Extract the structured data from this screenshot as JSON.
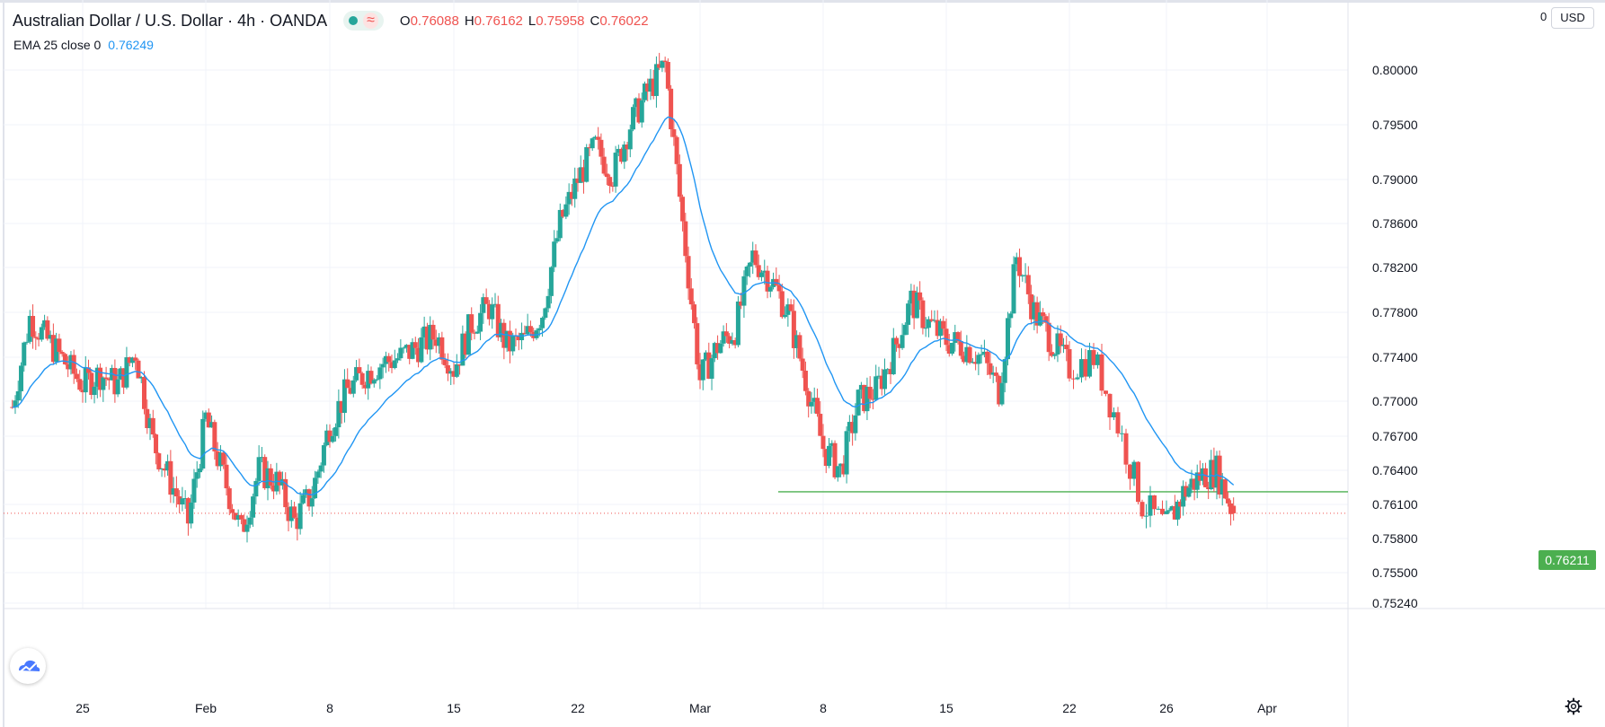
{
  "header": {
    "symbol": "Australian Dollar / U.S. Dollar",
    "interval": "4h",
    "exchange": "OANDA",
    "wave_glyph": "≈",
    "open_label": "O",
    "open": "0.76088",
    "high_label": "H",
    "high": "0.76162",
    "low_label": "L",
    "low": "0.75958",
    "close_label": "C",
    "close": "0.76022"
  },
  "indicator": {
    "label": "EMA 25 close 0",
    "value": "0.76249"
  },
  "currency_button": "USD",
  "scale_zero": "0",
  "support_badge": "0.76211",
  "colors": {
    "up": "#26a69a",
    "down": "#ef5350",
    "ema": "#2196f3",
    "support": "#4caf50",
    "last_price": "#ef5350"
  },
  "chart_data": {
    "type": "candlestick",
    "instrument": "AUD/USD",
    "timeframe": "4h",
    "y_ticks": [
      0.8,
      0.795,
      0.79,
      0.786,
      0.782,
      0.778,
      0.774,
      0.77,
      0.767,
      0.764,
      0.761,
      0.758,
      0.755,
      0.7524
    ],
    "y_tick_labels": [
      "0.80000",
      "0.79500",
      "0.79000",
      "0.78600",
      "0.78200",
      "0.77800",
      "0.77400",
      "0.77000",
      "0.76700",
      "0.76400",
      "0.76100",
      "0.75800",
      "0.75500",
      "0.75240"
    ],
    "x_tick_labels": [
      "25",
      "Feb",
      "8",
      "15",
      "22",
      "Mar",
      "8",
      "15",
      "22",
      "26",
      "Apr"
    ],
    "support_level": 0.76211,
    "last_price": 0.76022,
    "ema_label": "EMA 25 close 0",
    "close_path": [
      {
        "date": "Jan 21",
        "close": 0.7695
      },
      {
        "date": "Jan 22",
        "close": 0.7775
      },
      {
        "date": "Jan 23",
        "close": 0.7755
      },
      {
        "date": "Jan 25",
        "close": 0.7715
      },
      {
        "date": "Jan 26",
        "close": 0.7725
      },
      {
        "date": "Jan 27",
        "close": 0.7715
      },
      {
        "date": "Jan 28",
        "close": 0.7745
      },
      {
        "date": "Jan 29",
        "close": 0.7665
      },
      {
        "date": "Jan 31",
        "close": 0.7595
      },
      {
        "date": "Feb 1",
        "close": 0.7685
      },
      {
        "date": "Feb 2",
        "close": 0.7635
      },
      {
        "date": "Feb 3",
        "close": 0.7585
      },
      {
        "date": "Feb 4",
        "close": 0.764
      },
      {
        "date": "Feb 5",
        "close": 0.763
      },
      {
        "date": "Feb 6",
        "close": 0.7595
      },
      {
        "date": "Feb 7",
        "close": 0.762
      },
      {
        "date": "Feb 8",
        "close": 0.768
      },
      {
        "date": "Feb 9",
        "close": 0.771
      },
      {
        "date": "Feb 10",
        "close": 0.7725
      },
      {
        "date": "Feb 11",
        "close": 0.7735
      },
      {
        "date": "Feb 12",
        "close": 0.774
      },
      {
        "date": "Feb 14",
        "close": 0.776
      },
      {
        "date": "Feb 15",
        "close": 0.773
      },
      {
        "date": "Feb 16",
        "close": 0.777
      },
      {
        "date": "Feb 17",
        "close": 0.7785
      },
      {
        "date": "Feb 18",
        "close": 0.775
      },
      {
        "date": "Feb 19",
        "close": 0.7755
      },
      {
        "date": "Feb 20",
        "close": 0.778
      },
      {
        "date": "Feb 21",
        "close": 0.786
      },
      {
        "date": "Feb 22",
        "close": 0.79
      },
      {
        "date": "Feb 23",
        "close": 0.793
      },
      {
        "date": "Feb 24",
        "close": 0.7905
      },
      {
        "date": "Feb 25",
        "close": 0.795
      },
      {
        "date": "Feb 26",
        "close": 0.798
      },
      {
        "date": "Feb 27",
        "close": 0.8005
      },
      {
        "date": "Feb 28",
        "close": 0.786
      },
      {
        "date": "Mar 1",
        "close": 0.772
      },
      {
        "date": "Mar 2",
        "close": 0.775
      },
      {
        "date": "Mar 3",
        "close": 0.7765
      },
      {
        "date": "Mar 4",
        "close": 0.783
      },
      {
        "date": "Mar 5",
        "close": 0.781
      },
      {
        "date": "Mar 6",
        "close": 0.778
      },
      {
        "date": "Mar 7",
        "close": 0.772
      },
      {
        "date": "Mar 8",
        "close": 0.766
      },
      {
        "date": "Mar 9",
        "close": 0.764
      },
      {
        "date": "Mar 10",
        "close": 0.77
      },
      {
        "date": "Mar 11",
        "close": 0.771
      },
      {
        "date": "Mar 12",
        "close": 0.7745
      },
      {
        "date": "Mar 13",
        "close": 0.779
      },
      {
        "date": "Mar 14",
        "close": 0.777
      },
      {
        "date": "Mar 15",
        "close": 0.7755
      },
      {
        "date": "Mar 16",
        "close": 0.775
      },
      {
        "date": "Mar 17",
        "close": 0.774
      },
      {
        "date": "Mar 18",
        "close": 0.771
      },
      {
        "date": "Mar 19",
        "close": 0.783
      },
      {
        "date": "Mar 20",
        "close": 0.778
      },
      {
        "date": "Mar 21",
        "close": 0.7755
      },
      {
        "date": "Mar 22",
        "close": 0.773
      },
      {
        "date": "Mar 23",
        "close": 0.774
      },
      {
        "date": "Mar 24",
        "close": 0.768
      },
      {
        "date": "Mar 25",
        "close": 0.761
      },
      {
        "date": "Mar 26",
        "close": 0.759
      },
      {
        "date": "Mar 27",
        "close": 0.762
      },
      {
        "date": "Mar 28",
        "close": 0.7635
      },
      {
        "date": "Mar 29",
        "close": 0.764
      },
      {
        "date": "Mar 30",
        "close": 0.7602
      }
    ]
  }
}
